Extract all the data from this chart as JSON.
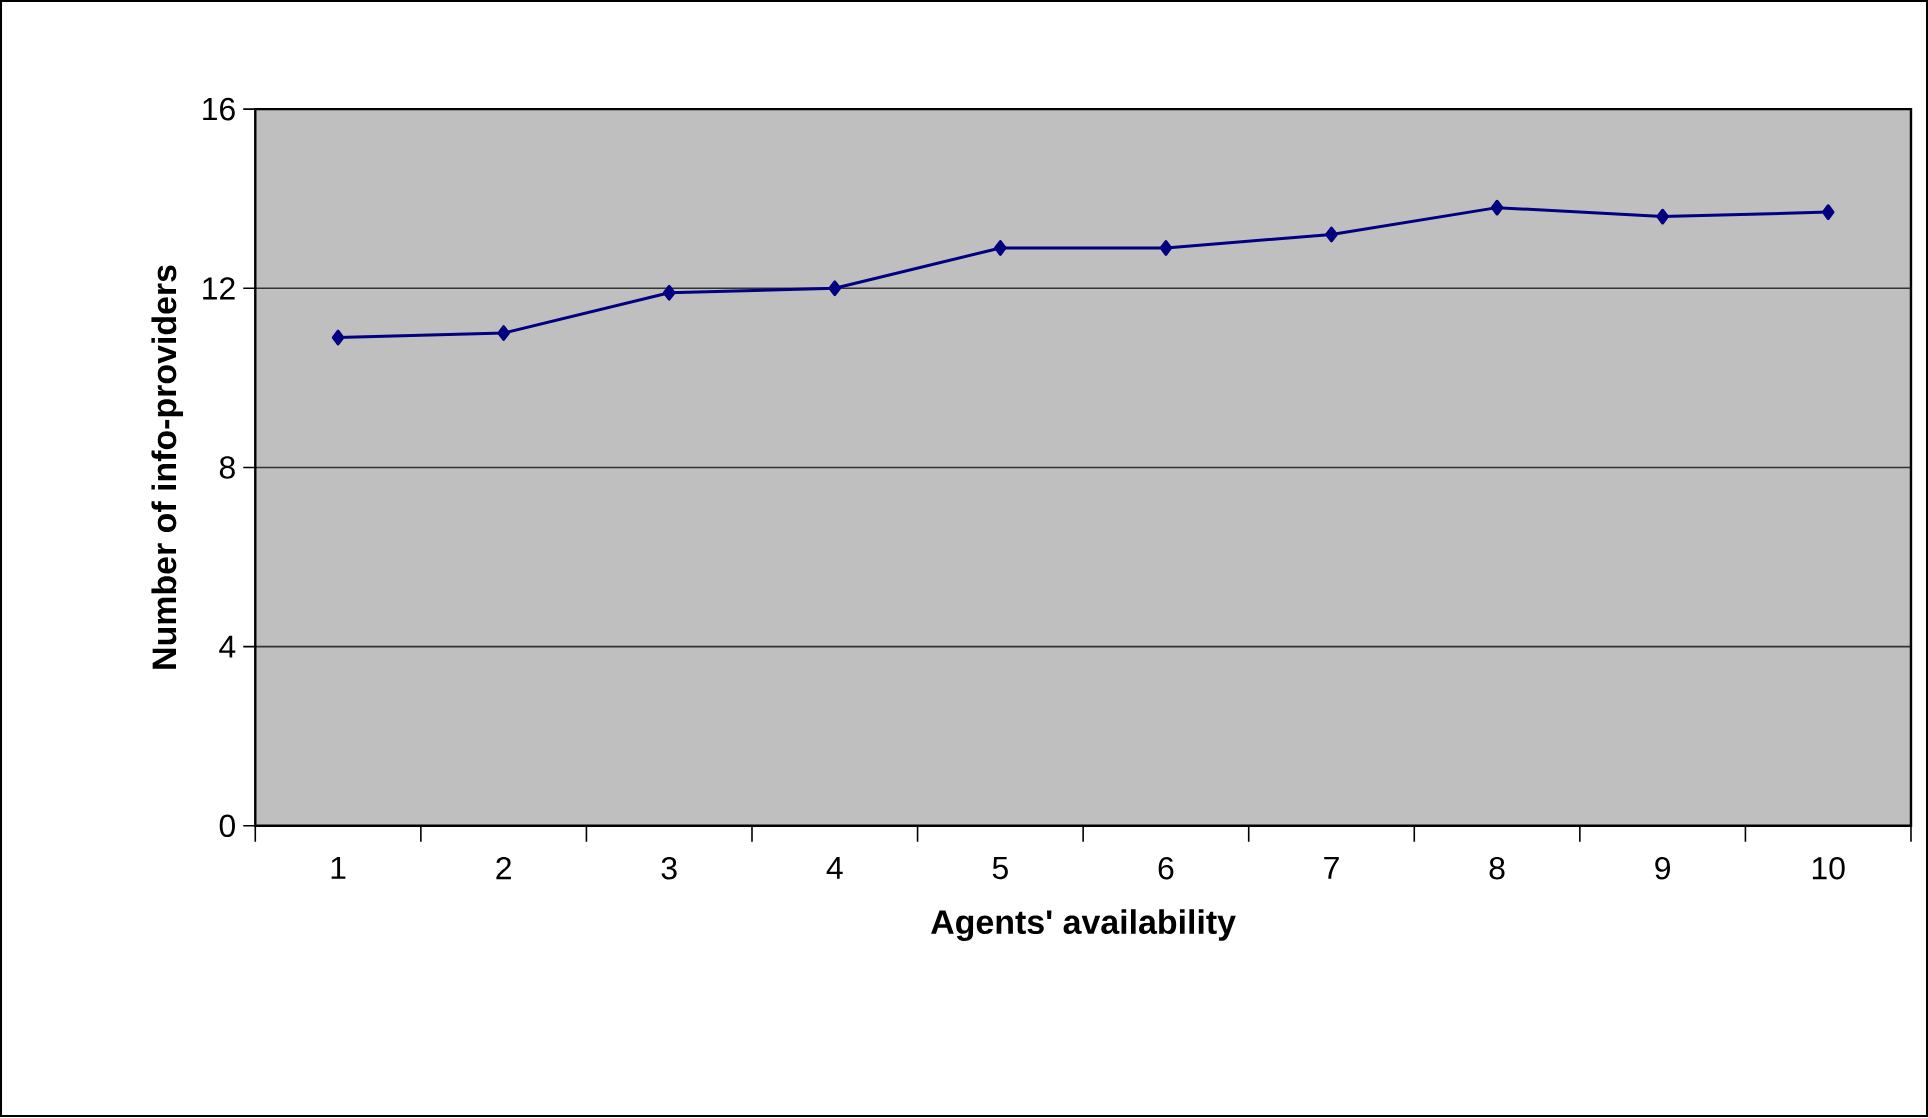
{
  "chart_data": {
    "type": "line",
    "xlabel": "Agents' availability",
    "ylabel": "Number of info-providers",
    "categories": [
      "1",
      "2",
      "3",
      "4",
      "5",
      "6",
      "7",
      "8",
      "9",
      "10"
    ],
    "series": [
      {
        "color": "#000080",
        "values": [
          10.9,
          11.0,
          11.9,
          12.0,
          12.9,
          12.9,
          13.2,
          13.8,
          13.6,
          13.7
        ]
      }
    ],
    "ylim": [
      0,
      16
    ],
    "yticks": [
      0,
      4,
      8,
      12,
      16
    ],
    "grid": "y",
    "marker": "diamond",
    "line_style": "solid"
  }
}
